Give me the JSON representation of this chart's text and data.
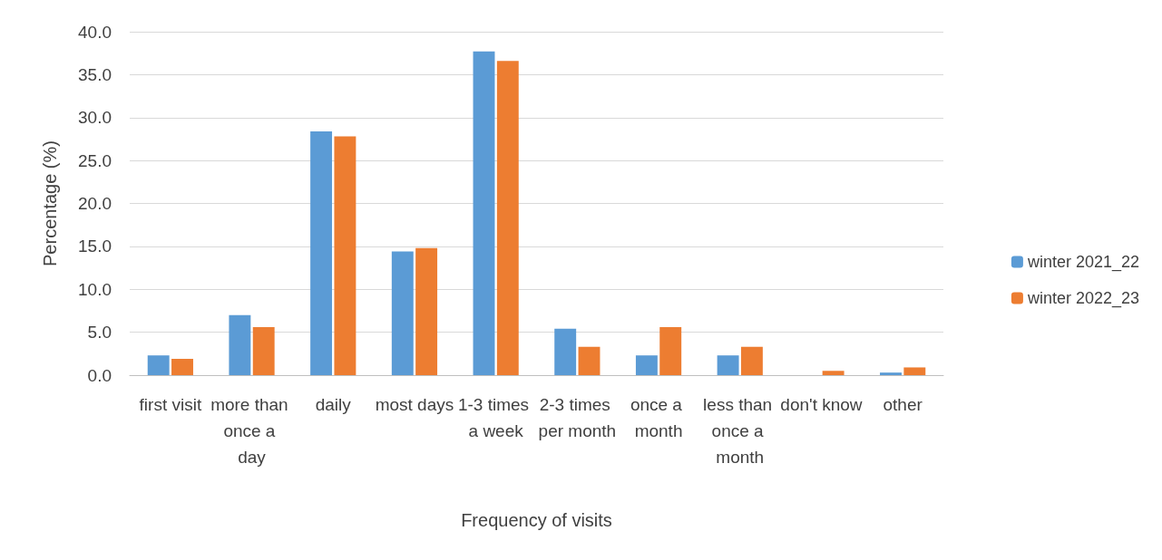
{
  "chart_data": {
    "type": "bar",
    "xlabel": "Frequency of visits",
    "ylabel": "Percentage (%)",
    "categories": [
      "first visit",
      "more than once a day",
      "daily",
      "most days",
      "1-3 times a week",
      "2-3 times per month",
      "once a month",
      "less than once a month",
      "don't know",
      "other"
    ],
    "series": [
      {
        "name": "winter 2021_22",
        "color": "#5b9bd5",
        "values": [
          2.3,
          7.0,
          28.4,
          14.4,
          37.7,
          5.4,
          2.3,
          2.3,
          0,
          0.3
        ]
      },
      {
        "name": "winter 2022_23",
        "color": "#ed7d31",
        "values": [
          1.9,
          5.6,
          27.8,
          14.8,
          36.6,
          3.3,
          5.6,
          3.3,
          0.5,
          0.9
        ]
      }
    ],
    "ylim": [
      0,
      40
    ],
    "yticks": [
      {
        "value": 0,
        "label": "0.0"
      },
      {
        "value": 5,
        "label": "5.0"
      },
      {
        "value": 10,
        "label": "10.0"
      },
      {
        "value": 15,
        "label": "15.0"
      },
      {
        "value": 20,
        "label": "20.0"
      },
      {
        "value": 25,
        "label": "25.0"
      },
      {
        "value": 30,
        "label": "30.0"
      },
      {
        "value": 35,
        "label": "35.0"
      },
      {
        "value": 40,
        "label": "40.0"
      }
    ],
    "grid": "y",
    "legend": "right"
  }
}
